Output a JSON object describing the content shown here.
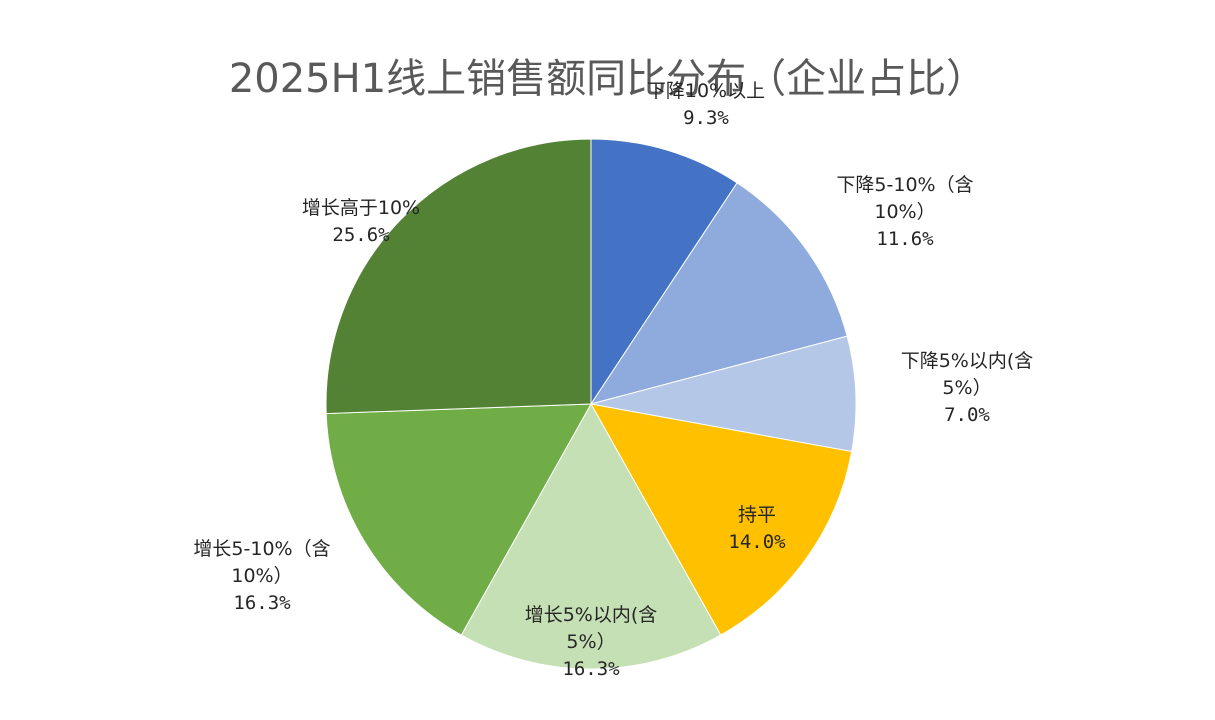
{
  "chart_data": {
    "type": "pie",
    "title": "2025H1线上销售额同比分布（企业占比）",
    "start_angle": "12 o'clock",
    "direction": "clockwise",
    "slices": [
      {
        "label_line1": "下降10%以上",
        "label_line2": "",
        "label": "下降10%以上",
        "value": 9.3,
        "value_text": "9.3%",
        "color": "#4472C4"
      },
      {
        "label_line1": "下降5-10%（含",
        "label_line2": "10%）",
        "label": "下降5-10%（含10%）",
        "value": 11.6,
        "value_text": "11.6%",
        "color": "#8FAADC"
      },
      {
        "label_line1": "下降5%以内(含",
        "label_line2": "5%）",
        "label": "下降5%以内(含5%）",
        "value": 7.0,
        "value_text": "7.0%",
        "color": "#B4C7E7"
      },
      {
        "label_line1": "持平",
        "label_line2": "",
        "label": "持平",
        "value": 14.0,
        "value_text": "14.0%",
        "color": "#FFC000"
      },
      {
        "label_line1": "增长5%以内(含",
        "label_line2": "5%）",
        "label": "增长5%以内(含5%）",
        "value": 16.3,
        "value_text": "16.3%",
        "color": "#C5E0B4"
      },
      {
        "label_line1": "增长5-10%（含",
        "label_line2": "10%）",
        "label": "增长5-10%（含10%）",
        "value": 16.3,
        "value_text": "16.3%",
        "color": "#70AD47"
      },
      {
        "label_line1": "增长高于10%",
        "label_line2": "",
        "label": "增长高于10%",
        "value": 25.6,
        "value_text": "25.6%",
        "color": "#548235"
      }
    ],
    "legend": "none (data labels)",
    "center": [
      591,
      404
    ],
    "radius": 265
  }
}
